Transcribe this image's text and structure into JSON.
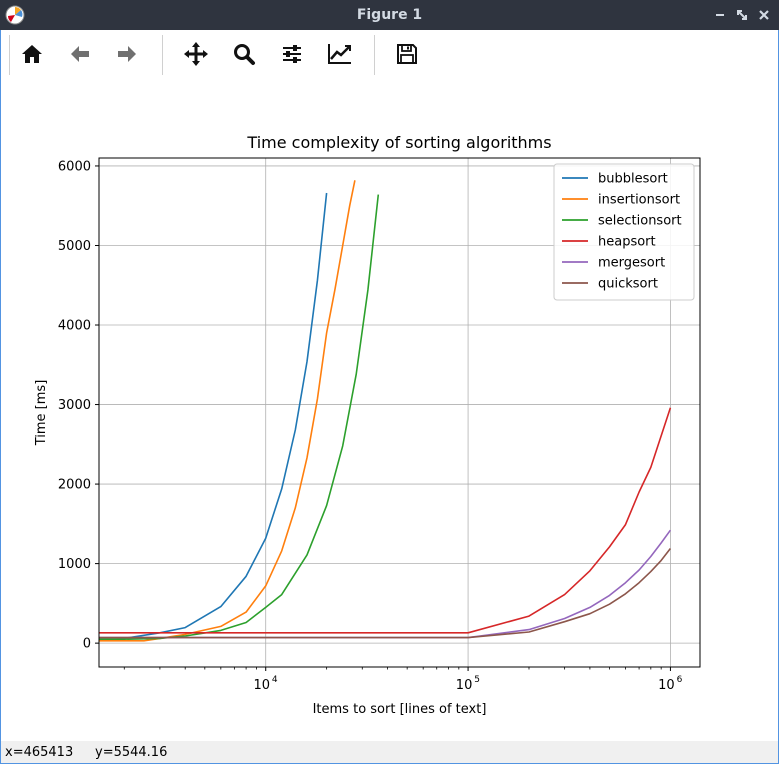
{
  "window": {
    "title": "Figure 1",
    "app_icon": "matplotlib-icon",
    "controls": [
      "minimize-icon",
      "maximize-icon",
      "close-icon"
    ]
  },
  "toolbar": {
    "buttons": [
      {
        "name": "home",
        "icon": "home-icon"
      },
      {
        "name": "back",
        "icon": "arrow-left-icon"
      },
      {
        "name": "forward",
        "icon": "arrow-right-icon"
      },
      {
        "name": "pan",
        "icon": "move-icon"
      },
      {
        "name": "zoom",
        "icon": "zoom-icon"
      },
      {
        "name": "configure-subplots",
        "icon": "sliders-icon"
      },
      {
        "name": "edit-axis",
        "icon": "chart-edit-icon"
      },
      {
        "name": "save",
        "icon": "save-icon"
      }
    ]
  },
  "status": {
    "x": "x=465413",
    "y": "y=5544.16"
  },
  "chart_data": {
    "type": "line",
    "title": "Time complexity of sorting algorithms",
    "xlabel": "Items to sort [lines of text]",
    "ylabel": "Time [ms]",
    "xscale": "log",
    "xlim": [
      1500,
      1400000
    ],
    "ylim": [
      -300,
      6100
    ],
    "xticks": [
      10000,
      100000,
      1000000
    ],
    "xtick_labels": [
      {
        "base": "10",
        "exp": "4"
      },
      {
        "base": "10",
        "exp": "5"
      },
      {
        "base": "10",
        "exp": "6"
      }
    ],
    "yticks": [
      0,
      1000,
      2000,
      3000,
      4000,
      5000,
      6000
    ],
    "ytick_labels": [
      "0",
      "1000",
      "2000",
      "3000",
      "4000",
      "5000",
      "6000"
    ],
    "grid": true,
    "legend_position": "top-right",
    "series": [
      {
        "name": "bubblesort",
        "color": "#1f77b4",
        "x": [
          1500,
          2000,
          3000,
          4000,
          6000,
          8000,
          10000,
          12000,
          14000,
          16000,
          18000,
          20000
        ],
        "y": [
          30,
          60,
          130,
          195,
          460,
          840,
          1320,
          1940,
          2680,
          3540,
          4560,
          5660
        ]
      },
      {
        "name": "insertionsort",
        "color": "#ff7f0e",
        "x": [
          1500,
          2000,
          2500,
          3000,
          4000,
          6000,
          8000,
          10000,
          12000,
          14000,
          16000,
          18000,
          20000,
          22000,
          24000,
          26000,
          27600
        ],
        "y": [
          30,
          30,
          30,
          60,
          110,
          210,
          390,
          720,
          1160,
          1700,
          2330,
          3070,
          3900,
          4450,
          5000,
          5500,
          5820
        ]
      },
      {
        "name": "selectionsort",
        "color": "#2ca02c",
        "x": [
          1500,
          2000,
          3000,
          4000,
          6000,
          8000,
          10000,
          12000,
          16000,
          20000,
          24000,
          28000,
          32000,
          36000
        ],
        "y": [
          50,
          50,
          60,
          90,
          160,
          260,
          450,
          610,
          1110,
          1730,
          2480,
          3380,
          4440,
          5640
        ]
      },
      {
        "name": "heapsort",
        "color": "#d62728",
        "x": [
          1500,
          100000,
          200000,
          300000,
          400000,
          500000,
          600000,
          700000,
          800000,
          1000000
        ],
        "y": [
          130,
          130,
          340,
          610,
          910,
          1210,
          1490,
          1900,
          2210,
          2960
        ]
      },
      {
        "name": "mergesort",
        "color": "#9467bd",
        "x": [
          1500,
          100000,
          200000,
          300000,
          400000,
          500000,
          600000,
          700000,
          800000,
          900000,
          1000000
        ],
        "y": [
          70,
          70,
          170,
          310,
          450,
          600,
          760,
          920,
          1090,
          1260,
          1420
        ]
      },
      {
        "name": "quicksort",
        "color": "#8c564b",
        "x": [
          1500,
          100000,
          200000,
          300000,
          400000,
          500000,
          600000,
          700000,
          800000,
          900000,
          1000000
        ],
        "y": [
          70,
          70,
          140,
          270,
          370,
          490,
          620,
          760,
          900,
          1040,
          1190
        ]
      }
    ]
  }
}
